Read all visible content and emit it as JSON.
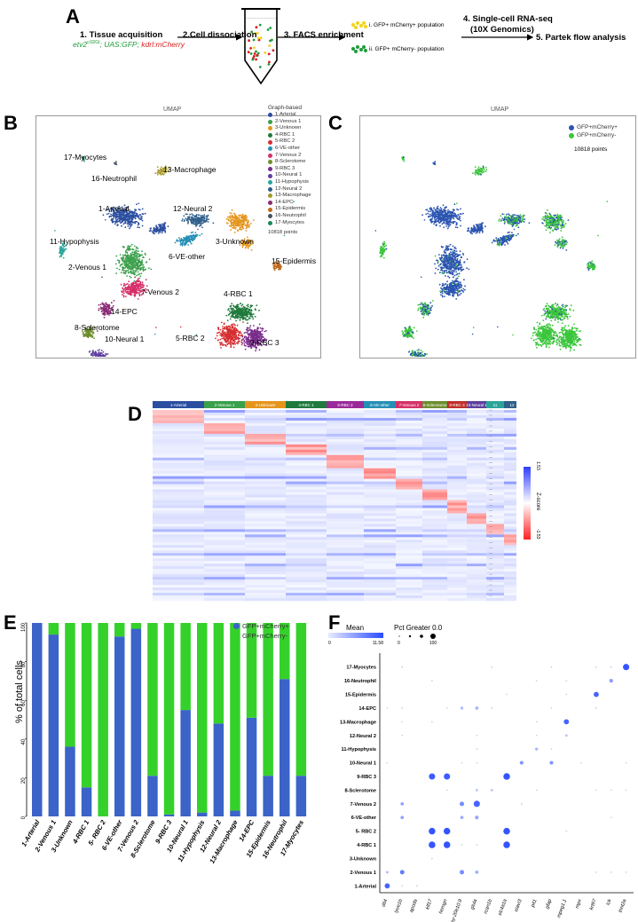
{
  "panelA": {
    "letter": "A",
    "step1_num": "1.",
    "step1_label": "Tissue acquisition",
    "genotype_a": "etv2",
    "genotype_a_sup": "ci32Gt",
    "genotype_b": "; UAS:GFP; ",
    "genotype_c": "kdrl:mCherry",
    "step2": "2.Cell dissociation",
    "step3": "3. FACS enrichment",
    "pop1": "i. GFP+ mCherry+ population",
    "pop2": "ii. GFP+ mCherry- population",
    "step4_a": "4. Single-cell RNA-seq",
    "step4_b": "(10X Genomics)",
    "step5": "5. Partek flow analysis",
    "colors": {
      "green": "#1f9c3a",
      "red": "#d81e1e",
      "yellow": "#f2d21a"
    }
  },
  "panelB": {
    "letter": "B",
    "title": "UMAP",
    "legend_title": "Graph-based",
    "points": "10818 points",
    "clusters": [
      {
        "name": "1-Arterial",
        "color": "#2b4ea0"
      },
      {
        "name": "2-Venous 1",
        "color": "#3aa04b"
      },
      {
        "name": "3-Unknown",
        "color": "#e5951c"
      },
      {
        "name": "4-RBC 1",
        "color": "#1f7a3c"
      },
      {
        "name": "5-RBC 2",
        "color": "#d62e31"
      },
      {
        "name": "6-VE-other",
        "color": "#2390b6"
      },
      {
        "name": "7-Venous 2",
        "color": "#d63069"
      },
      {
        "name": "8-Sclerotome",
        "color": "#6d8e2f"
      },
      {
        "name": "9-RBC 3",
        "color": "#7a2d8c"
      },
      {
        "name": "10-Neural 1",
        "color": "#5f3fa0"
      },
      {
        "name": "11-Hypophysis",
        "color": "#2aa59a"
      },
      {
        "name": "12-Neural 2",
        "color": "#2f5f8a"
      },
      {
        "name": "13-Macrophage",
        "color": "#a89a2a"
      },
      {
        "name": "14-EPC",
        "color": "#8a2a74"
      },
      {
        "name": "15-Epidermis",
        "color": "#c06a1e"
      },
      {
        "name": "16-Neutrophil",
        "color": "#445566"
      },
      {
        "name": "17-Myocytes",
        "color": "#1a8a5a"
      }
    ],
    "labels": {
      "myocytes": "17-Myocytes",
      "neutrophil": "16-Neutrophil",
      "macrophage": "13-Macrophage",
      "arterial": "1-Arterial",
      "neural2": "12-Neural 2",
      "unknown": "3-Unknown",
      "hypophysis": "11-Hypophysis",
      "veother": "6-VE-other",
      "venous1": "2-Venous 1",
      "epidermis": "15-Epidermis",
      "venous2": "7-Venous 2",
      "rbc1": "4-RBC 1",
      "epc": "14-EPC",
      "sclerotome": "8-Sclerotome",
      "rbc2": "5-RBC 2",
      "rbc3": "9-RBC 3",
      "neural1": "10-Neural 1"
    }
  },
  "panelC": {
    "letter": "C",
    "title": "UMAP",
    "legend": [
      {
        "name": "GFP+mCherry+",
        "color": "#2b54b0"
      },
      {
        "name": "GFP+mCherry-",
        "color": "#3ac63a"
      }
    ],
    "points": "10818 points"
  },
  "panelD": {
    "letter": "D",
    "header": [
      {
        "label": "1-Arterial",
        "color": "#2b4ea0"
      },
      {
        "label": "2-Venous 1",
        "color": "#3aa04b"
      },
      {
        "label": "3-Unknown",
        "color": "#e5951c"
      },
      {
        "label": "4-RBC 1",
        "color": "#1f7a3c"
      },
      {
        "label": "5-RBC 2",
        "color": "#9a2a9a"
      },
      {
        "label": "6-VE-other",
        "color": "#2390b6"
      },
      {
        "label": "7-Venous 2",
        "color": "#d63069"
      },
      {
        "label": "8-Sclerotome",
        "color": "#6d8e2f"
      },
      {
        "label": "9-RBC 3",
        "color": "#c0302a"
      },
      {
        "label": "10-Neural 1",
        "color": "#5f3fa0"
      },
      {
        "label": "11",
        "color": "#2aa59a"
      },
      {
        "label": "12",
        "color": "#2f5f8a"
      },
      {
        "label": "13",
        "color": "#a89a2a"
      },
      {
        "label": "14",
        "color": "#8a2a74"
      },
      {
        "label": "15",
        "color": "#c06a1e"
      },
      {
        "label": "16",
        "color": "#b02a2a"
      },
      {
        "label": "17",
        "color": "#1a8a5a"
      }
    ],
    "colorbar_label": "Z-score",
    "colorbar_max": "1.53",
    "colorbar_min": "-1.53"
  },
  "panelE": {
    "letter": "E",
    "chart_data": {
      "type": "bar",
      "stacked": true,
      "ylabel": "% of total cells",
      "ylim": [
        0,
        100
      ],
      "yticks": [
        0,
        20,
        40,
        60,
        80,
        100
      ],
      "categories": [
        "1-Arterial",
        "2-Venous 1",
        "3-Unknown",
        "4-RBC 1",
        "5- RBC 2",
        "6-VE-other",
        "7-Venous 2",
        "8-Sclerotome",
        "9-RBC 3",
        "10-Neural 1",
        "11-Hypophysis",
        "12-Neural 2",
        "13-Macrophage",
        "14-EPC",
        "15-Epidermis",
        "16-Neutrophil",
        "17-Myocytes"
      ],
      "series": [
        {
          "name": "GFP+mCherry+",
          "color": "#3b63c8",
          "values": [
            100,
            94,
            36,
            15,
            0,
            93,
            97,
            21,
            1,
            55,
            2,
            48,
            3,
            51,
            21,
            71,
            21
          ]
        },
        {
          "name": "GFP+mCherry-",
          "color": "#35d12b",
          "values": [
            0,
            6,
            64,
            85,
            100,
            7,
            3,
            79,
            99,
            45,
            98,
            52,
            97,
            49,
            79,
            29,
            79
          ]
        }
      ],
      "legend": "top-right"
    }
  },
  "panelF": {
    "letter": "F",
    "mean_label": "Mean",
    "mean_min": "0",
    "mean_max": "11.58",
    "pct_label": "Pct Greater 0.0",
    "pct_min": "0",
    "pct_max": "100",
    "chart_data": {
      "type": "scatter",
      "subtype": "dotplot",
      "rows": [
        "17-Myocytes",
        "16-Neutrophil",
        "15-Epidermis",
        "14-EPC",
        "13-Macrophage",
        "12-Neural 2",
        "11-Hypophysis",
        "10-Neural 1",
        "9-RBC 3",
        "8-Sclerotome",
        "7-Venous 2",
        "6-VE-other",
        "5- RBC 2",
        "4-RBC 1",
        "3-Unknown",
        "2-Venous 1",
        "1-Arterial"
      ],
      "genes": [
        "dll4",
        "lyve1b",
        "apoda",
        "klf17",
        "hemgn",
        "si:dkey-20e10.9",
        "glula",
        "rcan1b",
        "slc4a1a",
        "elavl3",
        "pit1",
        "gfap",
        "mpeg1.1",
        "mpx",
        "krt97",
        "lck",
        "tnnt2a"
      ],
      "dots": [
        {
          "row": "1-Arterial",
          "gene": "dll4",
          "size": 0.55,
          "mean": 0.85
        },
        {
          "row": "2-Venous 1",
          "gene": "lyve1b",
          "size": 0.45,
          "mean": 0.7
        },
        {
          "row": "2-Venous 1",
          "gene": "dll4",
          "size": 0.2,
          "mean": 0.3
        },
        {
          "row": "6-VE-other",
          "gene": "lyve1b",
          "size": 0.3,
          "mean": 0.45
        },
        {
          "row": "7-Venous 2",
          "gene": "lyve1b",
          "size": 0.3,
          "mean": 0.45
        },
        {
          "row": "7-Venous 2",
          "gene": "glula",
          "size": 0.7,
          "mean": 0.85
        },
        {
          "row": "7-Venous 2",
          "gene": "si:dkey-20e10.9",
          "size": 0.45,
          "mean": 0.6
        },
        {
          "row": "6-VE-other",
          "gene": "si:dkey-20e10.9",
          "size": 0.3,
          "mean": 0.4
        },
        {
          "row": "6-VE-other",
          "gene": "glula",
          "size": 0.35,
          "mean": 0.45
        },
        {
          "row": "2-Venous 1",
          "gene": "si:dkey-20e10.9",
          "size": 0.45,
          "mean": 0.6
        },
        {
          "row": "2-Venous 1",
          "gene": "glula",
          "size": 0.3,
          "mean": 0.4
        },
        {
          "row": "4-RBC 1",
          "gene": "klf17",
          "size": 0.75,
          "mean": 0.95
        },
        {
          "row": "4-RBC 1",
          "gene": "hemgn",
          "size": 0.75,
          "mean": 0.95
        },
        {
          "row": "4-RBC 1",
          "gene": "slc4a1a",
          "size": 0.75,
          "mean": 0.95
        },
        {
          "row": "5- RBC 2",
          "gene": "klf17",
          "size": 0.75,
          "mean": 0.95
        },
        {
          "row": "5- RBC 2",
          "gene": "hemgn",
          "size": 0.75,
          "mean": 0.95
        },
        {
          "row": "5- RBC 2",
          "gene": "slc4a1a",
          "size": 0.75,
          "mean": 0.95
        },
        {
          "row": "9-RBC 3",
          "gene": "klf17",
          "size": 0.7,
          "mean": 0.9
        },
        {
          "row": "9-RBC 3",
          "gene": "hemgn",
          "size": 0.7,
          "mean": 0.9
        },
        {
          "row": "9-RBC 3",
          "gene": "slc4a1a",
          "size": 0.75,
          "mean": 0.95
        },
        {
          "row": "8-Sclerotome",
          "gene": "glula",
          "size": 0.2,
          "mean": 0.25
        },
        {
          "row": "8-Sclerotome",
          "gene": "rcan1b",
          "size": 0.2,
          "mean": 0.25
        },
        {
          "row": "10-Neural 1",
          "gene": "elavl3",
          "size": 0.35,
          "mean": 0.55
        },
        {
          "row": "10-Neural 1",
          "gene": "gfap",
          "size": 0.35,
          "mean": 0.55
        },
        {
          "row": "11-Hypophysis",
          "gene": "pit1",
          "size": 0.25,
          "mean": 0.35
        },
        {
          "row": "12-Neural 2",
          "gene": "mpeg1.1",
          "size": 0.2,
          "mean": 0.25
        },
        {
          "row": "13-Macrophage",
          "gene": "mpeg1.1",
          "size": 0.55,
          "mean": 0.85
        },
        {
          "row": "14-EPC",
          "gene": "glula",
          "size": 0.3,
          "mean": 0.35
        },
        {
          "row": "14-EPC",
          "gene": "si:dkey-20e10.9",
          "size": 0.25,
          "mean": 0.3
        },
        {
          "row": "15-Epidermis",
          "gene": "krt97",
          "size": 0.55,
          "mean": 0.85
        },
        {
          "row": "16-Neutrophil",
          "gene": "lck",
          "size": 0.35,
          "mean": 0.5
        },
        {
          "row": "17-Myocytes",
          "gene": "tnnt2a",
          "size": 0.7,
          "mean": 0.95
        }
      ]
    }
  }
}
